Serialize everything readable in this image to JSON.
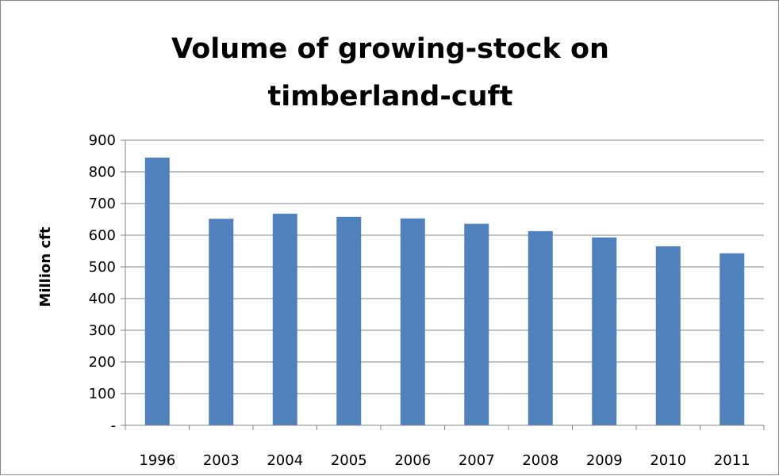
{
  "chart_data": {
    "type": "bar",
    "title_lines": [
      "Volume of growing-stock on",
      "timberland-cuft"
    ],
    "xlabel": "",
    "ylabel": "Million cft",
    "categories": [
      "1996",
      "2003",
      "2004",
      "2005",
      "2006",
      "2007",
      "2008",
      "2009",
      "2010",
      "2011"
    ],
    "series": [
      {
        "values": [
          845,
          652,
          668,
          658,
          653,
          636,
          613,
          593,
          565,
          543
        ],
        "color": "#4f81bd"
      }
    ],
    "ylim": [
      0,
      900
    ],
    "y_ticks": [
      {
        "value": 0,
        "label": "-"
      },
      {
        "value": 100,
        "label": "100"
      },
      {
        "value": 200,
        "label": "200"
      },
      {
        "value": 300,
        "label": "300"
      },
      {
        "value": 400,
        "label": "400"
      },
      {
        "value": 500,
        "label": "500"
      },
      {
        "value": 600,
        "label": "600"
      },
      {
        "value": 700,
        "label": "700"
      },
      {
        "value": 800,
        "label": "800"
      },
      {
        "value": 900,
        "label": "900"
      }
    ],
    "grid": true,
    "legend": "none",
    "colors": {
      "bar": "#4f81bd",
      "grid": "#868686",
      "axis": "#868686",
      "border": "#868686"
    }
  }
}
